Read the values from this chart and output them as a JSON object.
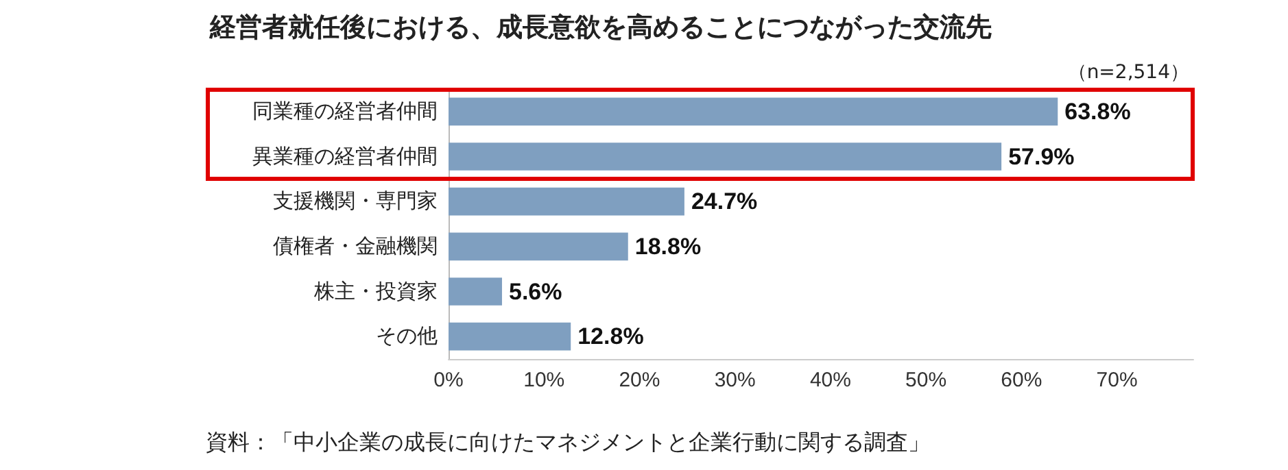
{
  "chart_data": {
    "type": "bar",
    "orientation": "horizontal",
    "title": "経営者就任後における、成長意欲を高めることにつながった交流先",
    "categories": [
      "同業種の経営者仲間",
      "異業種の経営者仲間",
      "支援機関・専門家",
      "債権者・金融機関",
      "株主・投資家",
      "その他"
    ],
    "values": [
      63.8,
      57.9,
      24.7,
      18.8,
      5.6,
      12.8
    ],
    "color": "#7f9fc0",
    "value_labels": [
      "63.8%",
      "57.9%",
      "24.7%",
      "18.8%",
      "5.6%",
      "12.8%"
    ],
    "xlim": [
      0,
      78
    ],
    "xticks": [
      {
        "value": 0,
        "label": "0%"
      },
      {
        "value": 10,
        "label": "10%"
      },
      {
        "value": 20,
        "label": "20%"
      },
      {
        "value": 30,
        "label": "30%"
      },
      {
        "value": 40,
        "label": "40%"
      },
      {
        "value": 50,
        "label": "50%"
      },
      {
        "value": 60,
        "label": "60%"
      },
      {
        "value": 70,
        "label": "70%"
      }
    ],
    "grid": false,
    "annotations": [
      "（n=2,514）",
      "資料：「中小企業の成長に向けたマネジメントと企業行動に関する調査」"
    ]
  }
}
